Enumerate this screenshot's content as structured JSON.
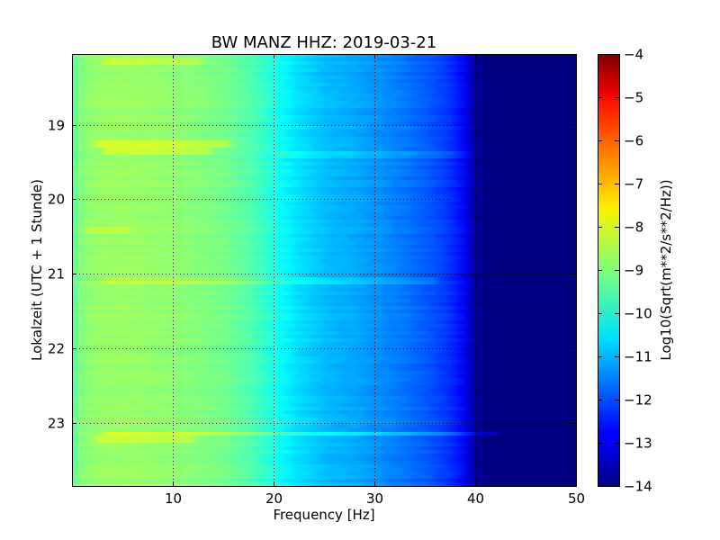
{
  "chart_data": {
    "type": "heatmap",
    "title": "BW MANZ HHZ: 2019-03-21",
    "xlabel": "Frequency [Hz]",
    "ylabel": "Lokalzeit (UTC + 1 Stunde)",
    "xlim": [
      0,
      50
    ],
    "ylim": [
      18.05,
      23.85
    ],
    "x_ticks": [
      10,
      20,
      30,
      40,
      50
    ],
    "x_tick_labels": [
      "10",
      "20",
      "30",
      "40",
      "50"
    ],
    "y_ticks": [
      19,
      20,
      21,
      22,
      23
    ],
    "y_tick_labels": [
      "19",
      "20",
      "21",
      "22",
      "23"
    ],
    "grid": true,
    "colormap": "jet",
    "colorbar": {
      "label": "Log10(Sqrt(m**2/s**2/Hz))",
      "range": [
        -14,
        -4
      ],
      "ticks": [
        -4,
        -5,
        -6,
        -7,
        -8,
        -9,
        -10,
        -11,
        -12,
        -13,
        -14
      ],
      "tick_labels": [
        "−4",
        "−5",
        "−6",
        "−7",
        "−8",
        "−9",
        "−10",
        "−11",
        "−12",
        "−13",
        "−14"
      ]
    },
    "spectrum_profile": {
      "frequency_hz": [
        0,
        1,
        3,
        6,
        10,
        15,
        18,
        20,
        22,
        25,
        28,
        30,
        33,
        36,
        38,
        39,
        40,
        41,
        50
      ],
      "value": [
        -9.3,
        -8.9,
        -8.75,
        -8.75,
        -8.85,
        -9.1,
        -9.5,
        -10.0,
        -10.5,
        -10.9,
        -11.1,
        -11.3,
        -11.6,
        -12.0,
        -12.4,
        -12.9,
        -13.7,
        -14.0,
        -14.0
      ]
    },
    "events": [
      {
        "time": 18.15,
        "f_start": 3,
        "f_end": 13,
        "delta": 0.4
      },
      {
        "time": 19.25,
        "f_start": 2,
        "f_end": 16,
        "delta": 0.55
      },
      {
        "time": 19.35,
        "f_start": 3,
        "f_end": 14,
        "delta": 0.5
      },
      {
        "time": 19.4,
        "f_start": 20,
        "f_end": 40,
        "delta": 0.35
      },
      {
        "time": 20.4,
        "f_start": 1,
        "f_end": 6,
        "delta": 0.3
      },
      {
        "time": 21.1,
        "f_start": 3,
        "f_end": 36,
        "delta": 0.35
      },
      {
        "time": 23.15,
        "f_start": 3,
        "f_end": 42,
        "delta": 0.6
      },
      {
        "time": 23.22,
        "f_start": 2,
        "f_end": 12,
        "delta": 0.45
      }
    ]
  }
}
